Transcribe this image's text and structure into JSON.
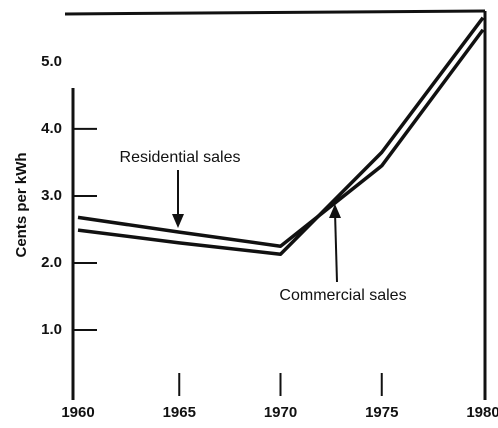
{
  "chart_data": {
    "type": "line",
    "y_label": "Cents per kWh",
    "x": [
      1960,
      1965,
      1970,
      1975,
      1980
    ],
    "xlim": [
      1960,
      1980
    ],
    "xticks": [
      1960,
      1965,
      1970,
      1975,
      1980
    ],
    "ylim": [
      0,
      5.7
    ],
    "yticks": [
      {
        "value": 1,
        "label": "1.0"
      },
      {
        "value": 2,
        "label": "2.0"
      },
      {
        "value": 3,
        "label": "3.0"
      },
      {
        "value": 4,
        "label": "4.0"
      },
      {
        "value": 5,
        "label": "5.0"
      }
    ],
    "series": [
      {
        "name": "Residential sales",
        "color": "#111111",
        "values": [
          2.68,
          2.46,
          2.25,
          3.45,
          5.48
        ]
      },
      {
        "name": "Commercial sales",
        "color": "#111111",
        "values": [
          2.49,
          2.3,
          2.13,
          3.65,
          5.66
        ]
      }
    ]
  }
}
